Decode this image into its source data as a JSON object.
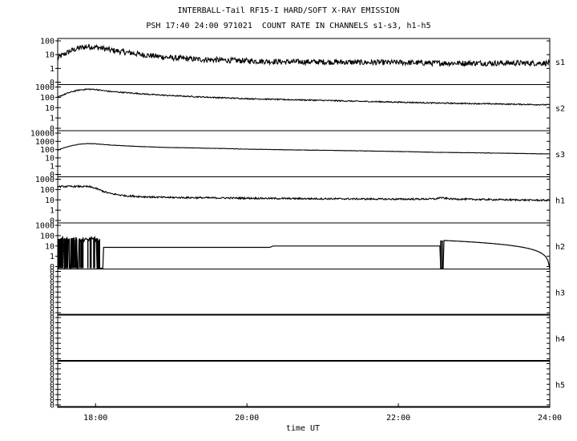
{
  "title": "INTERBALL-Tail RF15-I HARD/SOFT X-RAY EMISSION",
  "subtitle": "PSH 17:40 24:00 971021  COUNT RATE IN CHANNELS s1-s3, h1-h5",
  "chart_data": {
    "type": "line",
    "title": "INTERBALL-Tail RF15-I HARD/SOFT X-RAY EMISSION",
    "subtitle": "PSH 17:40 24:00 971021  COUNT RATE IN CHANNELS s1-s3, h1-h5",
    "xlabel": "time UT",
    "x_unit": "hours UT",
    "xlim": [
      17.5,
      24.0
    ],
    "x_ticks": [
      18,
      20,
      22,
      24
    ],
    "x_tick_labels": [
      "18:00",
      "20:00",
      "22:00",
      "24:00"
    ],
    "yscale": "log",
    "grid": false,
    "series": [
      {
        "name": "s1",
        "y_tick_labels": [
          "100",
          "10",
          "1",
          "0"
        ],
        "ylim": [
          0.2,
          200
        ],
        "x": [
          17.5,
          17.6,
          17.7,
          17.8,
          17.9,
          18.0,
          18.1,
          18.2,
          18.4,
          18.6,
          18.8,
          19.0,
          19.3,
          19.6,
          20.0,
          20.5,
          21.0,
          21.5,
          22.0,
          22.5,
          23.0,
          23.5,
          24.0
        ],
        "y": [
          10,
          20,
          35,
          50,
          60,
          55,
          45,
          35,
          25,
          18,
          14,
          11,
          9,
          8,
          7,
          6,
          6,
          5.5,
          5.5,
          5,
          5,
          5,
          5
        ]
      },
      {
        "name": "s2",
        "y_tick_labels": [
          "1000",
          "100",
          "10",
          "1",
          "0"
        ],
        "ylim": [
          0.2,
          2000
        ],
        "x": [
          17.5,
          17.6,
          17.7,
          17.8,
          17.9,
          18.0,
          18.1,
          18.2,
          18.4,
          18.6,
          18.8,
          19.0,
          19.3,
          19.6,
          20.0,
          20.5,
          21.0,
          21.5,
          22.0,
          22.5,
          23.0,
          23.5,
          24.0
        ],
        "y": [
          150,
          300,
          500,
          700,
          800,
          750,
          600,
          500,
          400,
          320,
          260,
          220,
          180,
          150,
          120,
          100,
          85,
          70,
          60,
          50,
          45,
          40,
          35
        ]
      },
      {
        "name": "s3",
        "y_tick_labels": [
          "10000",
          "1000",
          "100",
          "10",
          "1",
          "0"
        ],
        "ylim": [
          0.2,
          20000
        ],
        "x": [
          17.5,
          17.6,
          17.7,
          17.8,
          17.9,
          18.0,
          18.1,
          18.2,
          18.4,
          18.6,
          18.8,
          19.0,
          19.3,
          19.6,
          20.0,
          20.5,
          21.0,
          21.5,
          22.0,
          22.5,
          23.0,
          23.5,
          24.0
        ],
        "y": [
          150,
          300,
          500,
          700,
          800,
          750,
          650,
          550,
          450,
          380,
          330,
          300,
          270,
          240,
          200,
          170,
          150,
          130,
          110,
          90,
          80,
          70,
          60
        ]
      },
      {
        "name": "h1",
        "y_tick_labels": [
          "1000",
          "100",
          "10",
          "1",
          "0"
        ],
        "ylim": [
          0.2,
          2000
        ],
        "x": [
          17.5,
          17.6,
          17.7,
          17.8,
          17.9,
          17.95,
          18.0,
          18.05,
          18.1,
          18.15,
          18.2,
          18.3,
          18.4,
          18.6,
          18.8,
          19.0,
          19.5,
          20.0,
          20.5,
          21.0,
          21.5,
          22.0,
          22.5,
          22.55,
          22.6,
          22.7,
          23.0,
          23.5,
          24.0
        ],
        "y": [
          280,
          290,
          290,
          290,
          280,
          250,
          200,
          150,
          110,
          85,
          70,
          55,
          45,
          38,
          34,
          32,
          30,
          28,
          26,
          25,
          24,
          23,
          24,
          32,
          28,
          24,
          22,
          20,
          18
        ]
      },
      {
        "name": "h2",
        "y_tick_labels": [
          "1000",
          "100",
          "10",
          "1",
          "0"
        ],
        "ylim": [
          0.2,
          2000
        ],
        "x": [
          17.5,
          17.55,
          17.6,
          17.65,
          17.7,
          17.75,
          17.8,
          17.85,
          17.9,
          17.95,
          18.0,
          18.05,
          18.1,
          20.3,
          20.35,
          22.55,
          22.6,
          24.0
        ],
        "y": [
          60,
          80,
          60,
          80,
          70,
          80,
          60,
          80,
          70,
          80,
          70,
          80,
          15,
          15,
          20,
          20,
          60,
          0
        ],
        "dropouts": [
          [
            17.5,
            17.52
          ],
          [
            17.58,
            17.6
          ],
          [
            17.62,
            17.63
          ],
          [
            17.66,
            17.68
          ],
          [
            17.72,
            17.73
          ],
          [
            17.76,
            17.78
          ],
          [
            18.02,
            18.1
          ],
          [
            22.55,
            22.6
          ]
        ]
      },
      {
        "name": "h3",
        "y_tick_labels": [
          "0",
          "0",
          "0",
          "0",
          "0",
          "0",
          "0",
          "0",
          "0"
        ],
        "ylim": [
          0,
          1
        ],
        "x": [
          17.5,
          24.0
        ],
        "y": [
          0,
          0
        ]
      },
      {
        "name": "h4",
        "y_tick_labels": [
          "0",
          "0",
          "0",
          "0",
          "0",
          "0",
          "0",
          "0",
          "0"
        ],
        "ylim": [
          0,
          1
        ],
        "x": [
          17.5,
          24.0
        ],
        "y": [
          0,
          0
        ]
      },
      {
        "name": "h5",
        "y_tick_labels": [
          "0",
          "0",
          "0",
          "0",
          "0",
          "0",
          "0",
          "0",
          "0"
        ],
        "ylim": [
          0,
          1
        ],
        "x": [
          17.5,
          24.0
        ],
        "y": [
          0,
          0
        ]
      }
    ]
  }
}
